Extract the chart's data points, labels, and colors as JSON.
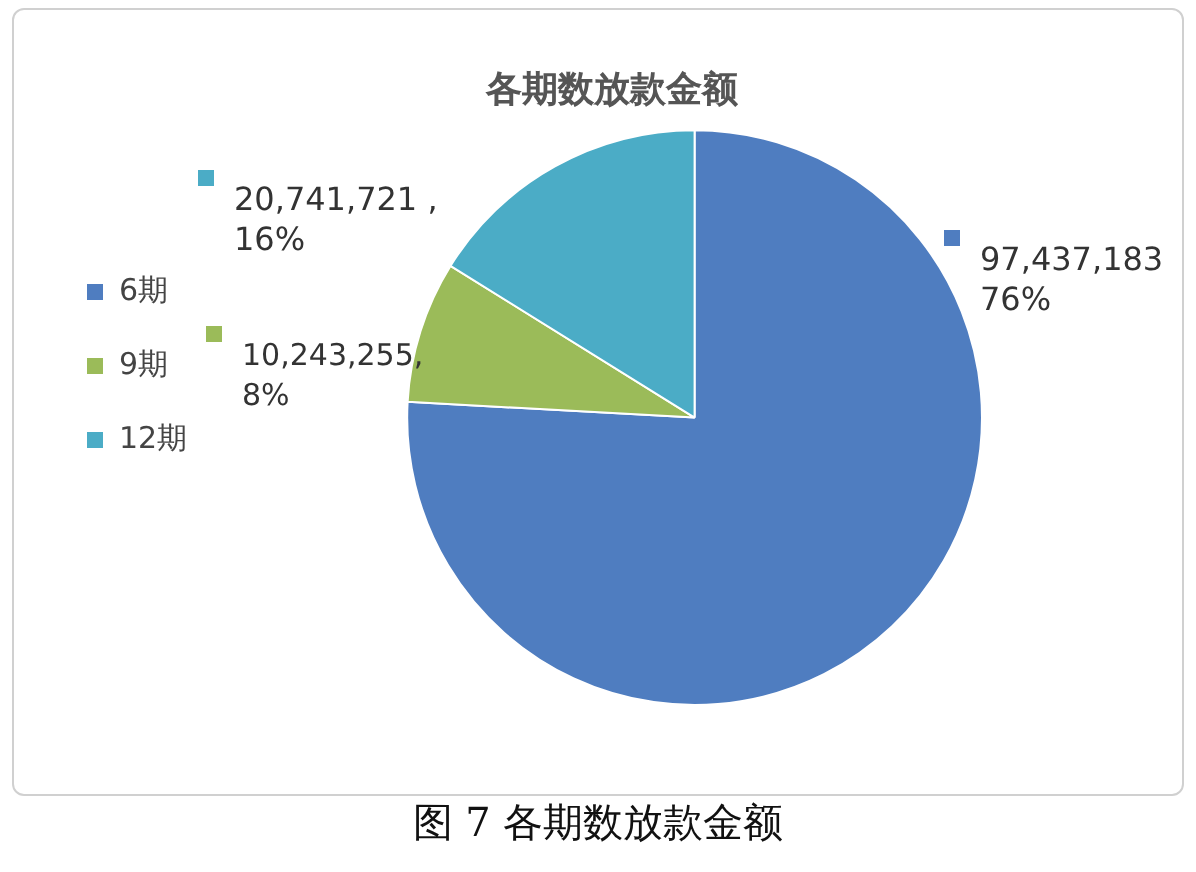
{
  "chart_data": {
    "type": "pie",
    "title": "各期数放款金额",
    "categories": [
      "6期",
      "9期",
      "12期"
    ],
    "values": [
      97437183,
      10243255,
      20741721
    ],
    "value_labels": [
      "97,437,183\n76%",
      "10,243,255,\n8%",
      "20,741,721 ,\n16%"
    ],
    "colors": [
      "#4f7dc0",
      "#9bbb59",
      "#4bacc6"
    ],
    "legend": "left",
    "annotations": [
      "图 7 各期数放款金额"
    ]
  }
}
